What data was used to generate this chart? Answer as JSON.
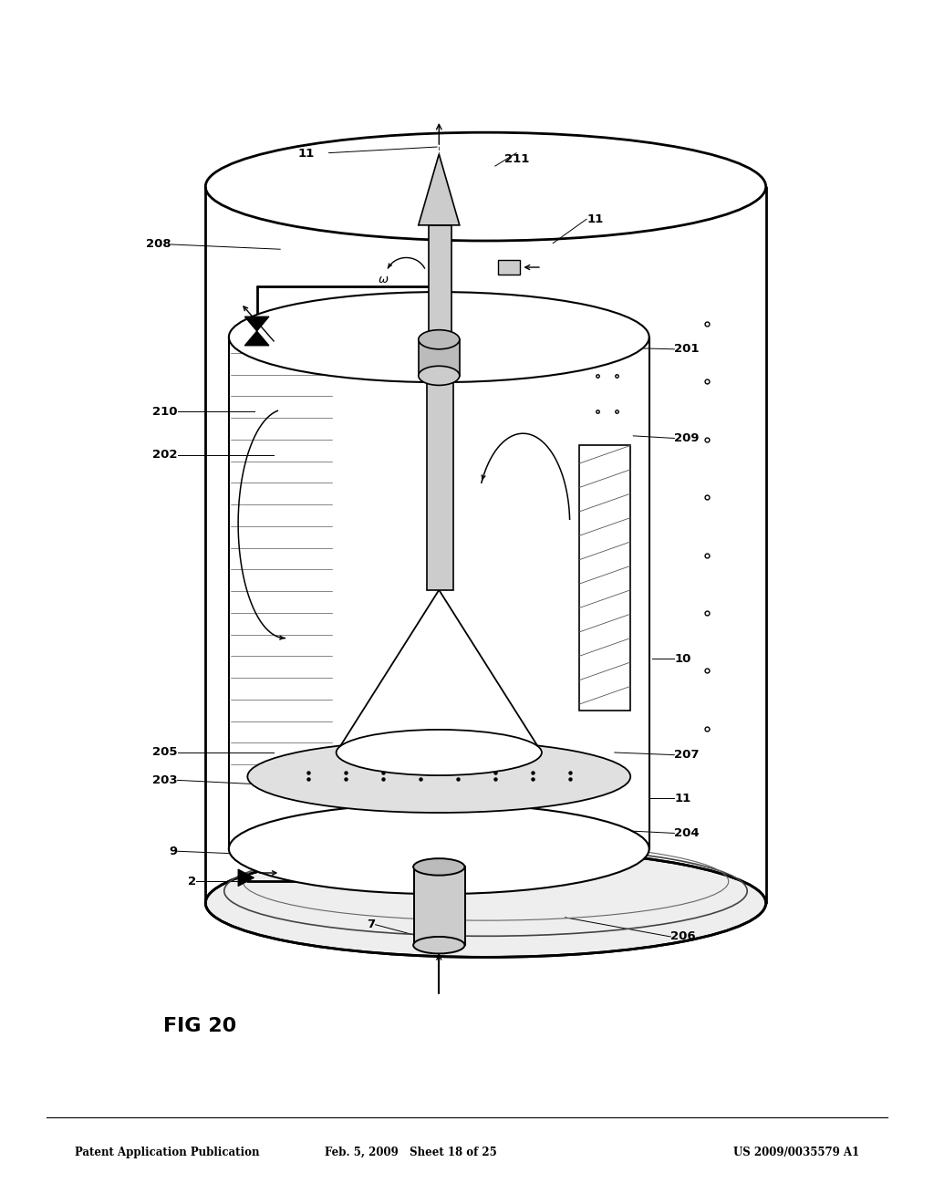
{
  "header_left": "Patent Application Publication",
  "header_mid": "Feb. 5, 2009   Sheet 18 of 25",
  "header_right": "US 2009/0035579 A1",
  "fig_label": "FIG 20",
  "bg_color": "#ffffff",
  "line_color": "#000000",
  "labels_left": {
    "2": [
      0.285,
      0.27,
      0.213,
      0.27
    ],
    "9": [
      0.285,
      0.29,
      0.193,
      0.295
    ],
    "203": [
      0.295,
      0.35,
      0.193,
      0.355
    ],
    "205": [
      0.295,
      0.378,
      0.193,
      0.378
    ],
    "202": [
      0.295,
      0.625,
      0.193,
      0.625
    ],
    "210": [
      0.275,
      0.66,
      0.193,
      0.66
    ],
    "208": [
      0.3,
      0.795,
      0.185,
      0.8
    ]
  },
  "labels_right": {
    "206": [
      0.6,
      0.24,
      0.718,
      0.225
    ],
    "204": [
      0.67,
      0.313,
      0.725,
      0.31
    ],
    "11a": [
      0.695,
      0.34,
      0.725,
      0.34
    ],
    "207": [
      0.66,
      0.378,
      0.725,
      0.375
    ],
    "10": [
      0.7,
      0.455,
      0.725,
      0.455
    ],
    "209": [
      0.68,
      0.64,
      0.725,
      0.638
    ],
    "201": [
      0.62,
      0.715,
      0.725,
      0.712
    ],
    "11b": [
      0.595,
      0.8,
      0.63,
      0.82
    ]
  }
}
